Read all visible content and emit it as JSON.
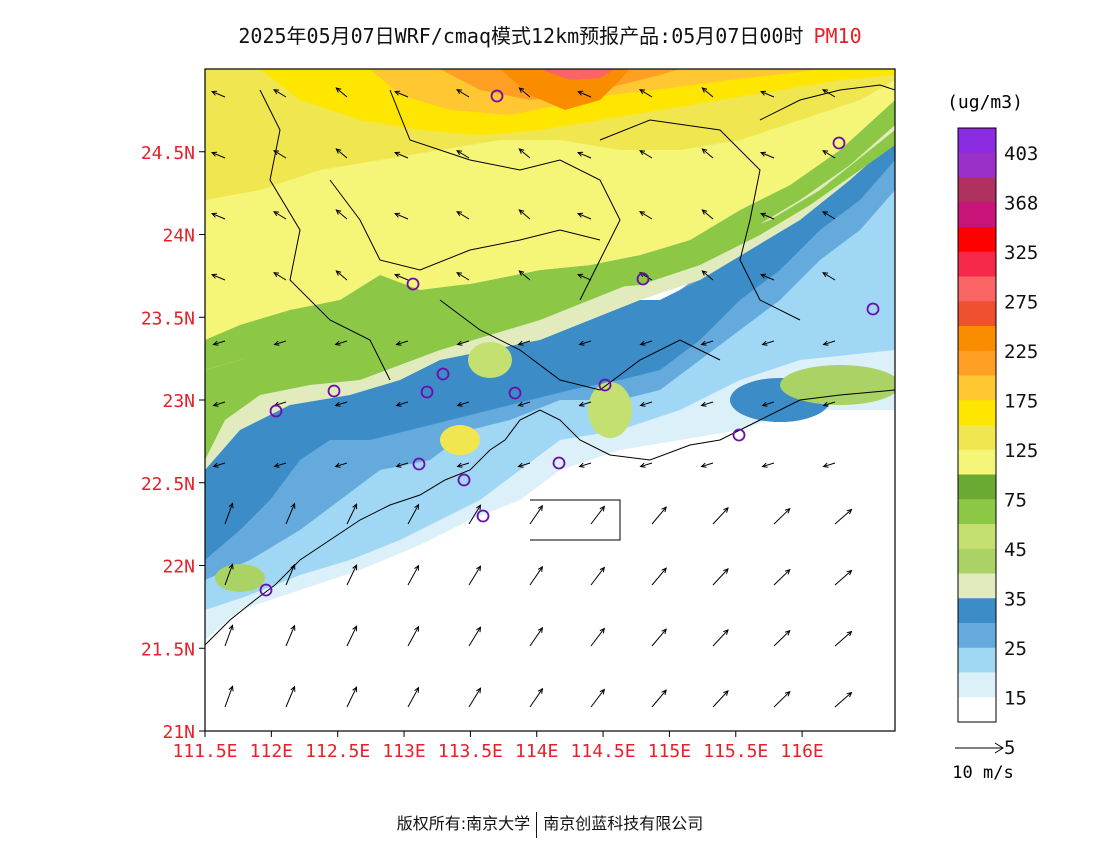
{
  "title": {
    "text": "2025年05月07日WRF/cmaq模式12km预报产品:05月07日00时",
    "variable": "PM10"
  },
  "axes": {
    "lat_ticks": [
      "24.5N",
      "24N",
      "23.5N",
      "23N",
      "22.5N",
      "22N",
      "21.5N",
      "21N"
    ],
    "lat_values": [
      24.5,
      24,
      23.5,
      23,
      22.5,
      22,
      21.5,
      21
    ],
    "lon_ticks": [
      "111.5E",
      "112E",
      "112.5E",
      "113E",
      "113.5E",
      "114E",
      "114.5E",
      "115E",
      "115.5E",
      "116E"
    ],
    "lon_values": [
      111.5,
      112,
      112.5,
      113,
      113.5,
      114,
      114.5,
      115,
      115.5,
      116
    ],
    "lat_range": [
      21,
      25
    ],
    "lon_range": [
      111.5,
      116.7
    ],
    "tick_color": "#e8202a"
  },
  "legend": {
    "unit": "(ug/m3)",
    "labels": [
      "403",
      "368",
      "325",
      "275",
      "225",
      "175",
      "125",
      "75",
      "45",
      "35",
      "25",
      "15",
      "5"
    ],
    "colors": [
      "#8b2be2",
      "#9b30c8",
      "#b03060",
      "#c81478",
      "#ff0000",
      "#f5284a",
      "#fa6464",
      "#ee5030",
      "#fa8c00",
      "#ffa024",
      "#ffc832",
      "#ffe600",
      "#f0e650",
      "#f5f578",
      "#6aaa32",
      "#8cc846",
      "#c4e070",
      "#aad264",
      "#e1ebbe",
      "#3c8cc8",
      "#64aadc",
      "#a0d7f5",
      "#dcf0fa",
      "#ffffff"
    ]
  },
  "wind_scale": {
    "label": "10 m/s"
  },
  "footer": {
    "left": "版权所有:南京大学",
    "right": "南京创蓝科技有限公司"
  },
  "stations_count_note": ""
}
